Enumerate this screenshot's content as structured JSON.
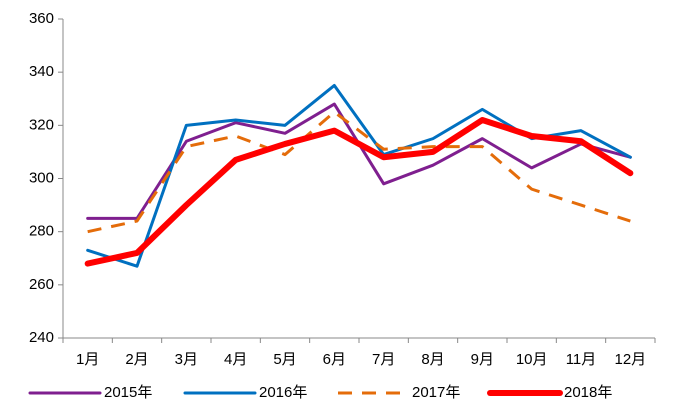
{
  "chart_data": {
    "type": "line",
    "categories": [
      "1月",
      "2月",
      "3月",
      "4月",
      "5月",
      "6月",
      "7月",
      "8月",
      "9月",
      "10月",
      "11月",
      "12月"
    ],
    "series": [
      {
        "name": "2015年",
        "color": "#7f1f8f",
        "linewidth": 3,
        "dashed": false,
        "values": [
          285,
          285,
          314,
          321,
          317,
          328,
          298,
          305,
          315,
          304,
          313,
          308
        ]
      },
      {
        "name": "2016年",
        "color": "#0070c0",
        "linewidth": 3,
        "dashed": false,
        "values": [
          273,
          267,
          320,
          322,
          320,
          335,
          309,
          315,
          326,
          315,
          318,
          308
        ]
      },
      {
        "name": "2017年",
        "color": "#e46c0a",
        "linewidth": 3,
        "dashed": true,
        "values": [
          280,
          284,
          312,
          316,
          309,
          325,
          311,
          312,
          312,
          296,
          290,
          284
        ]
      },
      {
        "name": "2018年",
        "color": "#ff0000",
        "linewidth": 6,
        "dashed": false,
        "values": [
          268,
          272,
          290,
          307,
          313,
          318,
          308,
          310,
          322,
          316,
          314,
          302
        ]
      }
    ],
    "ylim": [
      240,
      360
    ],
    "yticks": [
      240,
      260,
      280,
      300,
      320,
      340,
      360
    ],
    "grid": false,
    "legend": "bottom"
  }
}
